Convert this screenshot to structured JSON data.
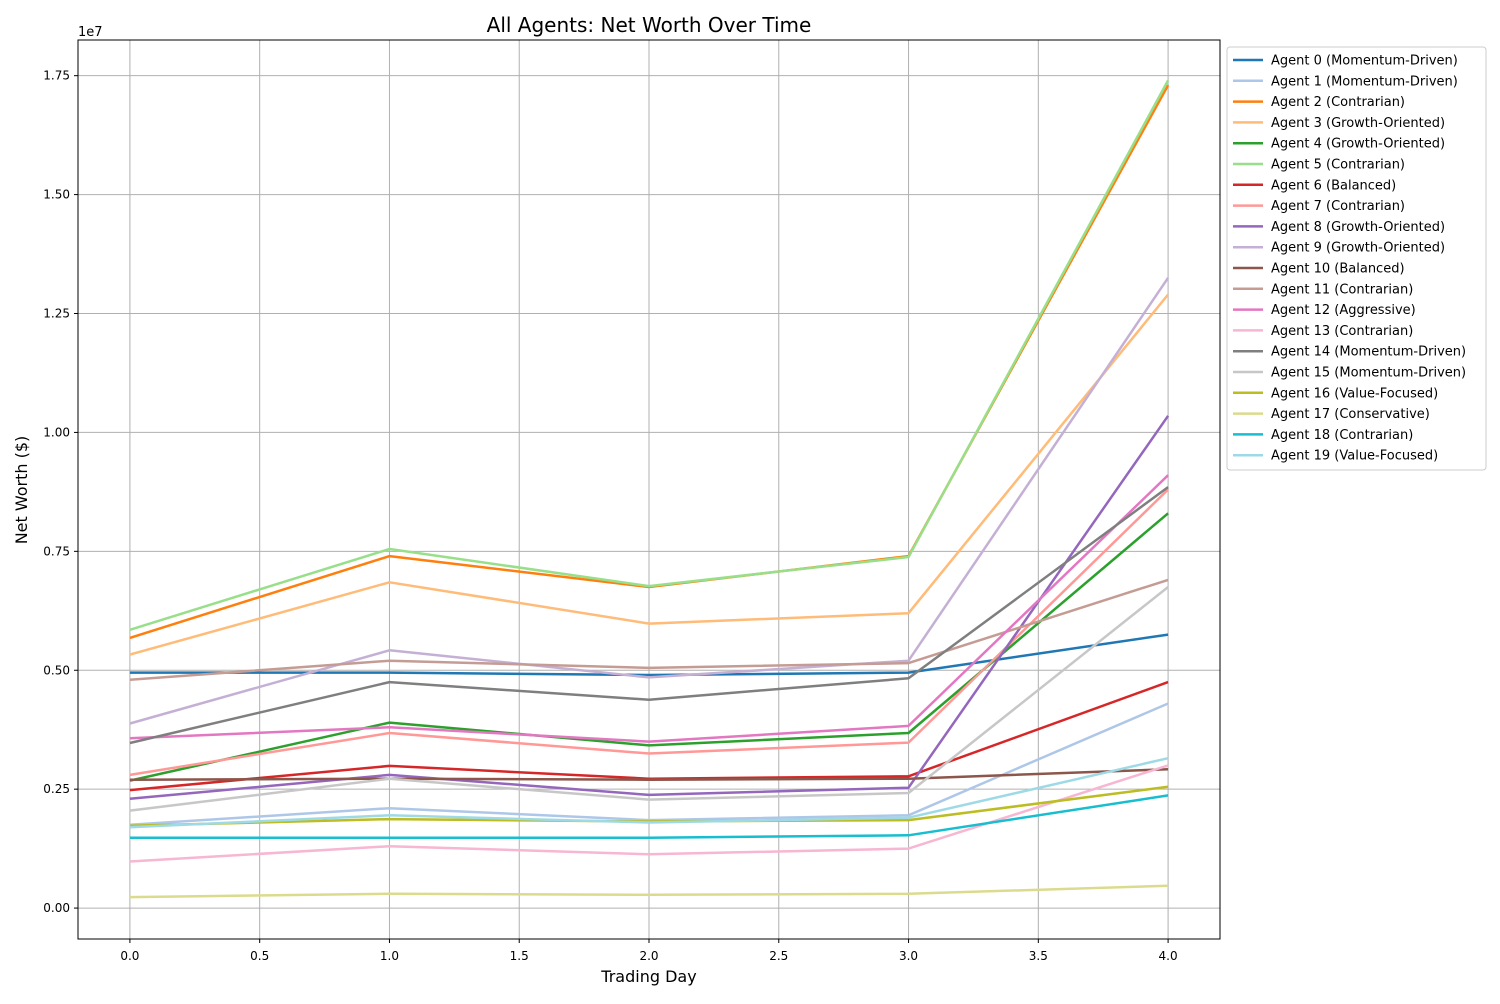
{
  "chart_data": {
    "type": "line",
    "title": "All Agents: Net Worth Over Time",
    "xlabel": "Trading Day",
    "ylabel": "Net Worth ($)",
    "y_offset_label": "1e7",
    "x": [
      0,
      1,
      2,
      3,
      4
    ],
    "xlim": [
      -0.2,
      4.2
    ],
    "ylim": [
      -650000,
      18250000
    ],
    "x_ticks": [
      0,
      0.5,
      1,
      1.5,
      2,
      2.5,
      3,
      3.5,
      4
    ],
    "x_tick_labels": [
      "0.0",
      "0.5",
      "1.0",
      "1.5",
      "2.0",
      "2.5",
      "3.0",
      "3.5",
      "4.0"
    ],
    "y_ticks": [
      0,
      2500000,
      5000000,
      7500000,
      10000000,
      12500000,
      15000000,
      17500000
    ],
    "y_tick_labels": [
      "0.00",
      "0.25",
      "0.50",
      "0.75",
      "1.00",
      "1.25",
      "1.50",
      "1.75"
    ],
    "grid": true,
    "legend_position": "outside-right-top",
    "series": [
      {
        "name": "Agent 0 (Momentum-Driven)",
        "color": "#1f77b4",
        "values": [
          4950000,
          4950000,
          4900000,
          4950000,
          5750000
        ]
      },
      {
        "name": "Agent 1 (Momentum-Driven)",
        "color": "#aec7e8",
        "values": [
          1750000,
          2100000,
          1850000,
          1950000,
          4300000
        ]
      },
      {
        "name": "Agent 2 (Contrarian)",
        "color": "#ff7f0e",
        "values": [
          5680000,
          7400000,
          6750000,
          7400000,
          17300000
        ]
      },
      {
        "name": "Agent 3 (Growth-Oriented)",
        "color": "#ffbb78",
        "values": [
          5330000,
          6850000,
          5980000,
          6200000,
          12900000
        ]
      },
      {
        "name": "Agent 4 (Growth-Oriented)",
        "color": "#2ca02c",
        "values": [
          2680000,
          3900000,
          3420000,
          3680000,
          8300000
        ]
      },
      {
        "name": "Agent 5 (Contrarian)",
        "color": "#98df8a",
        "values": [
          5850000,
          7550000,
          6770000,
          7380000,
          17400000
        ]
      },
      {
        "name": "Agent 6 (Balanced)",
        "color": "#d62728",
        "values": [
          2480000,
          2990000,
          2720000,
          2770000,
          4750000
        ]
      },
      {
        "name": "Agent 7 (Contrarian)",
        "color": "#ff9896",
        "values": [
          2800000,
          3680000,
          3250000,
          3480000,
          8800000
        ]
      },
      {
        "name": "Agent 8 (Growth-Oriented)",
        "color": "#9467bd",
        "values": [
          2300000,
          2800000,
          2380000,
          2530000,
          10350000
        ]
      },
      {
        "name": "Agent 9 (Growth-Oriented)",
        "color": "#c5b0d5",
        "values": [
          3880000,
          5420000,
          4850000,
          5200000,
          13250000
        ]
      },
      {
        "name": "Agent 10 (Balanced)",
        "color": "#8c564b",
        "values": [
          2700000,
          2720000,
          2700000,
          2720000,
          2920000
        ]
      },
      {
        "name": "Agent 11 (Contrarian)",
        "color": "#c49c94",
        "values": [
          4800000,
          5200000,
          5050000,
          5150000,
          6900000
        ]
      },
      {
        "name": "Agent 12 (Aggressive)",
        "color": "#e377c2",
        "values": [
          3570000,
          3800000,
          3500000,
          3830000,
          9100000
        ]
      },
      {
        "name": "Agent 13 (Contrarian)",
        "color": "#f7b6d2",
        "values": [
          980000,
          1300000,
          1130000,
          1250000,
          3000000
        ]
      },
      {
        "name": "Agent 14 (Momentum-Driven)",
        "color": "#7f7f7f",
        "values": [
          3470000,
          4750000,
          4380000,
          4830000,
          8850000
        ]
      },
      {
        "name": "Agent 15 (Momentum-Driven)",
        "color": "#c7c7c7",
        "values": [
          2050000,
          2720000,
          2280000,
          2420000,
          6750000
        ]
      },
      {
        "name": "Agent 16 (Value-Focused)",
        "color": "#bcbd22",
        "values": [
          1730000,
          1870000,
          1820000,
          1850000,
          2550000
        ]
      },
      {
        "name": "Agent 17 (Conservative)",
        "color": "#dbdb8d",
        "values": [
          230000,
          300000,
          280000,
          300000,
          470000
        ]
      },
      {
        "name": "Agent 18 (Contrarian)",
        "color": "#17becf",
        "values": [
          1480000,
          1480000,
          1480000,
          1530000,
          2370000
        ]
      },
      {
        "name": "Agent 19 (Value-Focused)",
        "color": "#9edae5",
        "values": [
          1700000,
          1950000,
          1800000,
          1900000,
          3150000
        ]
      }
    ]
  }
}
